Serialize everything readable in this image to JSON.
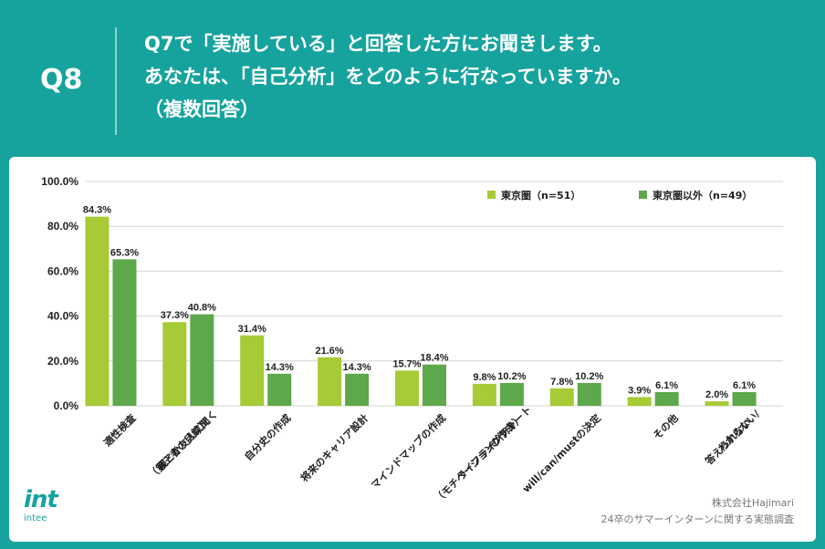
{
  "header": {
    "q_label": "Q8",
    "lines": [
      "Q7で「実施している」と回答した方にお聞きします。",
      "あなたは、「自己分析」をどのように行なっていますか。",
      "（複数回答）"
    ]
  },
  "colors": {
    "bg": "#16a39d",
    "series1": "#a6cb36",
    "series2": "#5da84a",
    "grid": "#d4d4d4"
  },
  "chart_data": {
    "type": "bar",
    "title": "",
    "xlabel": "",
    "ylabel": "",
    "ylim": [
      0,
      100
    ],
    "yticks": [
      "0.0%",
      "20.0%",
      "40.0%",
      "60.0%",
      "80.0%",
      "100.0%"
    ],
    "categories": [
      [
        "適性検査"
      ],
      [
        "親とか友人に聞く",
        "（第三者の目線）"
      ],
      [
        "自分史の作成"
      ],
      [
        "将来のキャリア設計"
      ],
      [
        "マインドマップの作成"
      ],
      [
        "ライフラインチャート",
        "（モチベーショングラフ）",
        "の作成"
      ],
      [
        "will/can/mustの決定"
      ],
      [
        "その他"
      ],
      [
        "わからない/",
        "答えられない"
      ]
    ],
    "series": [
      {
        "name": "東京圏（n=51）",
        "values": [
          84.3,
          37.3,
          31.4,
          21.6,
          15.7,
          9.8,
          7.8,
          3.9,
          2.0
        ],
        "labels": [
          "84.3%",
          "37.3%",
          "31.4%",
          "21.6%",
          "15.7%",
          "9.8%",
          "7.8%",
          "3.9%",
          "2.0%"
        ]
      },
      {
        "name": "東京圏以外（n=49）",
        "values": [
          65.3,
          40.8,
          14.3,
          14.3,
          18.4,
          10.2,
          10.2,
          6.1,
          6.1
        ],
        "labels": [
          "65.3%",
          "40.8%",
          "14.3%",
          "14.3%",
          "18.4%",
          "10.2%",
          "10.2%",
          "6.1%",
          "6.1%"
        ]
      }
    ],
    "legend_position": "top-right",
    "grid": true
  },
  "footer": {
    "logo": "int",
    "logo_sub": "intee",
    "company": "株式会社Hajimari",
    "source": "24卒のサマーインターンに関する実態調査"
  }
}
